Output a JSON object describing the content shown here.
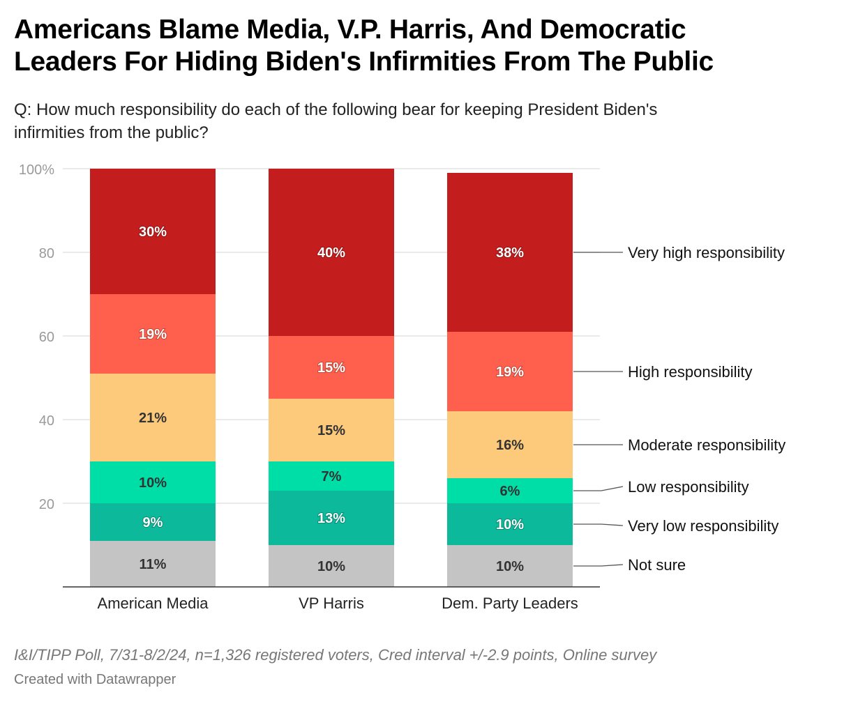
{
  "header": {
    "title_line1": "Americans Blame Media, V.P. Harris, And Democratic",
    "title_line2": "Leaders For Hiding Biden's Infirmities From The Public",
    "subtitle_line1": "Q: How much responsibility do each of the following bear for keeping President Biden's",
    "subtitle_line2": "infirmities from the public?"
  },
  "footer": {
    "source": "I&I/TIPP Poll, 7/31-8/2/24, n=1,326 registered voters, Cred interval +/-2.9 points, Online survey",
    "credit": "Created with Datawrapper"
  },
  "colors": {
    "Very high responsibility": "#c41d1d",
    "High responsibility": "#ff5f4d",
    "Moderate responsibility": "#fdc97a",
    "Low responsibility": "#00dea8",
    "Very low responsibility": "#0cb99b",
    "Not sure": "#c4c4c4"
  },
  "chart_data": {
    "type": "bar",
    "stacked": true,
    "categories": [
      "American Media",
      "VP Harris",
      "Dem. Party Leaders"
    ],
    "series": [
      {
        "name": "Not sure",
        "values": [
          11,
          10,
          10
        ]
      },
      {
        "name": "Very low responsibility",
        "values": [
          9,
          13,
          10
        ]
      },
      {
        "name": "Low responsibility",
        "values": [
          10,
          7,
          6
        ]
      },
      {
        "name": "Moderate responsibility",
        "values": [
          21,
          15,
          16
        ]
      },
      {
        "name": "High responsibility",
        "values": [
          19,
          15,
          19
        ]
      },
      {
        "name": "Very high responsibility",
        "values": [
          30,
          40,
          38
        ]
      }
    ],
    "ylim": [
      0,
      100
    ],
    "yticks": [
      20,
      40,
      60,
      80,
      100
    ],
    "ytick_labels": [
      "20",
      "40",
      "60",
      "80",
      "100%"
    ],
    "grid": true,
    "legend": "right, labels attached to last bar",
    "label_suffix": "%"
  }
}
